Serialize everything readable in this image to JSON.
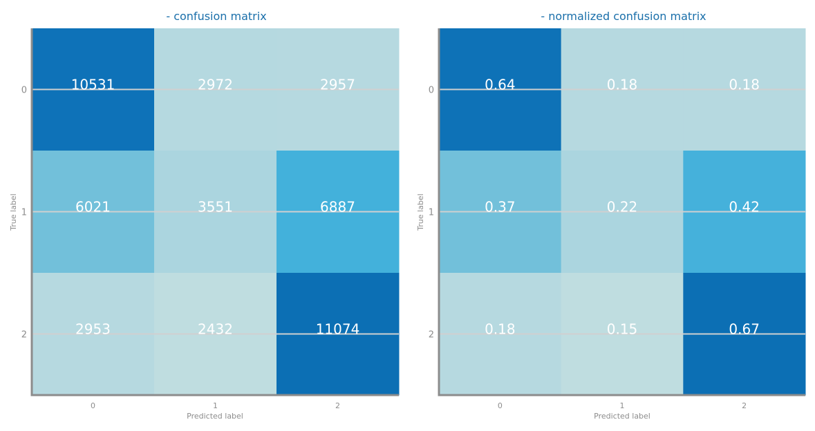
{
  "chart_data": [
    {
      "type": "heatmap",
      "title": "- confusion matrix",
      "xlabel": "Predicted label",
      "ylabel": "True label",
      "x_ticks": [
        "0",
        "1",
        "2"
      ],
      "y_ticks": [
        "0",
        "1",
        "2"
      ],
      "values": [
        [
          10531,
          2972,
          2957
        ],
        [
          6021,
          3551,
          6887
        ],
        [
          2953,
          2432,
          11074
        ]
      ],
      "labels": [
        [
          "10531",
          "2972",
          "2957"
        ],
        [
          "6021",
          "3551",
          "6887"
        ],
        [
          "2953",
          "2432",
          "11074"
        ]
      ],
      "grid": true
    },
    {
      "type": "heatmap",
      "title": "- normalized confusion matrix",
      "xlabel": "Predicted label",
      "ylabel": "True label",
      "x_ticks": [
        "0",
        "1",
        "2"
      ],
      "y_ticks": [
        "0",
        "1",
        "2"
      ],
      "values": [
        [
          0.64,
          0.18,
          0.18
        ],
        [
          0.37,
          0.22,
          0.42
        ],
        [
          0.18,
          0.15,
          0.67
        ]
      ],
      "labels": [
        [
          "0.64",
          "0.18",
          "0.18"
        ],
        [
          "0.37",
          "0.22",
          "0.42"
        ],
        [
          "0.18",
          "0.15",
          "0.67"
        ]
      ],
      "grid": true
    }
  ],
  "colors": {
    "title": "#1a6faa",
    "tick": "#8c8c8c",
    "spine": "#8c8c8c",
    "grid": "#d0d0d0",
    "cell_text": "#ffffff",
    "colormap": [
      "#bfdde0",
      "#a0d0df",
      "#79c2da",
      "#1ca4dc",
      "#127ac0",
      "#0c6fb4"
    ]
  }
}
